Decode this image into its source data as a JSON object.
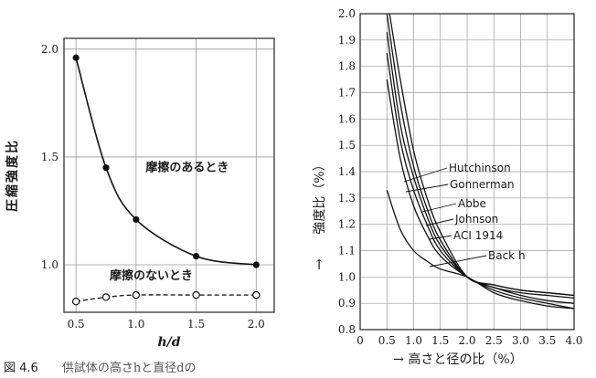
{
  "caption": {
    "figure_number": "図 4.6",
    "text": "供試体の高さhと直径dの"
  },
  "chart_data": [
    {
      "type": "line",
      "title": "",
      "xlabel": "h/d",
      "ylabel": "圧縮強度比",
      "xlim": [
        0.4,
        2.15
      ],
      "ylim": [
        0.78,
        2.05
      ],
      "xticks": [
        "0.5",
        "1.0",
        "1.5",
        "2.0"
      ],
      "yticks": [
        "1.0",
        "1.5",
        "2.0"
      ],
      "grid": true,
      "series": [
        {
          "name": "摩擦のあるとき",
          "style": "solid",
          "marker": "filled-circle",
          "x": [
            0.5,
            0.75,
            1.0,
            1.5,
            2.0
          ],
          "y": [
            1.96,
            1.45,
            1.21,
            1.04,
            1.0
          ]
        },
        {
          "name": "摩擦のないとき",
          "style": "dashed",
          "marker": "open-circle",
          "x": [
            0.5,
            0.75,
            1.0,
            1.5,
            2.0
          ],
          "y": [
            0.83,
            0.85,
            0.86,
            0.86,
            0.86
          ]
        }
      ]
    },
    {
      "type": "line",
      "title": "",
      "xlabel": "→ 高さと径の比（%）",
      "ylabel": "強度比（%）",
      "ylabel_arrow": "↑",
      "xlim": [
        0,
        4.0
      ],
      "ylim": [
        0.8,
        2.0
      ],
      "xticks": [
        "0",
        "0.5",
        "1.0",
        "1.5",
        "2.0",
        "2.5",
        "3.0",
        "3.5",
        "4.0"
      ],
      "yticks": [
        "0.8",
        "0.9",
        "1.0",
        "1.1",
        "1.2",
        "1.3",
        "1.4",
        "1.5",
        "1.6",
        "1.7",
        "1.8",
        "1.9",
        "2.0"
      ],
      "grid": true,
      "series": [
        {
          "name": "Hutchinson",
          "x": [
            0.55,
            0.75,
            1.0,
            1.25,
            1.5,
            2.0,
            2.5,
            3.0,
            3.5,
            4.0
          ],
          "y": [
            2.0,
            1.75,
            1.48,
            1.3,
            1.17,
            1.0,
            0.97,
            0.95,
            0.94,
            0.93
          ]
        },
        {
          "name": "Gonnerman",
          "x": [
            0.5,
            0.75,
            1.0,
            1.25,
            1.5,
            2.0,
            2.5,
            3.0,
            3.5,
            4.0
          ],
          "y": [
            2.0,
            1.66,
            1.42,
            1.26,
            1.14,
            1.0,
            0.97,
            0.95,
            0.94,
            0.93
          ]
        },
        {
          "name": "Abbe",
          "x": [
            0.5,
            0.75,
            1.0,
            1.25,
            1.5,
            2.0,
            2.5,
            3.0,
            3.5,
            4.0
          ],
          "y": [
            1.93,
            1.58,
            1.38,
            1.23,
            1.12,
            1.0,
            0.96,
            0.94,
            0.93,
            0.92
          ]
        },
        {
          "name": "Johnson",
          "x": [
            0.5,
            0.75,
            1.0,
            1.25,
            1.5,
            2.0,
            2.5,
            3.0,
            3.5,
            4.0
          ],
          "y": [
            1.85,
            1.52,
            1.33,
            1.2,
            1.1,
            1.0,
            0.96,
            0.93,
            0.91,
            0.9
          ]
        },
        {
          "name": "ACI 1914",
          "x": [
            0.5,
            0.75,
            1.0,
            1.25,
            1.5,
            2.0,
            2.5,
            3.0,
            3.5,
            4.0
          ],
          "y": [
            1.75,
            1.45,
            1.27,
            1.16,
            1.08,
            1.0,
            0.95,
            0.92,
            0.9,
            0.88
          ]
        },
        {
          "name": "Back h",
          "x": [
            0.5,
            0.75,
            1.0,
            1.25,
            1.5,
            2.0,
            2.5,
            3.0,
            3.5,
            4.0
          ],
          "y": [
            1.33,
            1.18,
            1.1,
            1.06,
            1.03,
            1.0,
            0.94,
            0.91,
            0.89,
            0.88
          ]
        }
      ]
    }
  ]
}
